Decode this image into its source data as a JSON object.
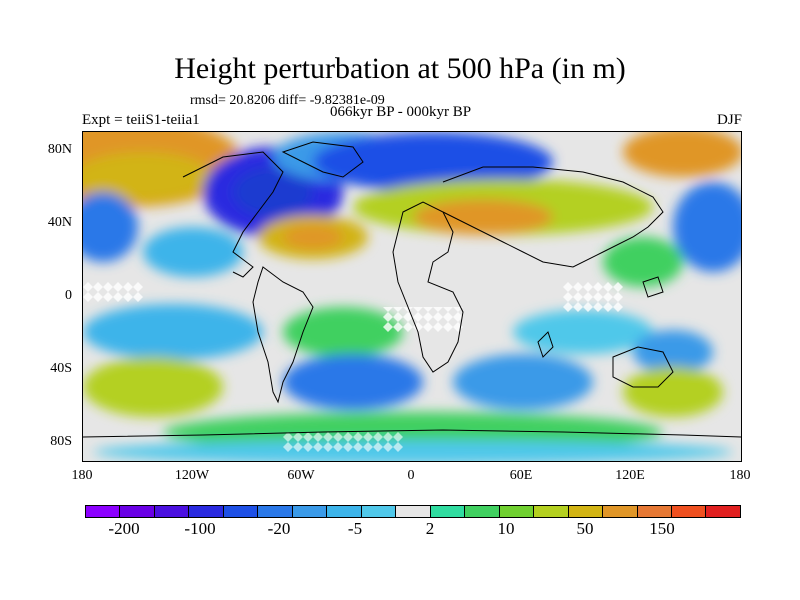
{
  "title": "Height perturbation at 500 hPa (in m)",
  "stats": "rmsd= 20.8206 diff= -9.82381e-09",
  "expt": "Expt = teiiS1-teiia1",
  "period": "066kyr BP - 000kyr BP",
  "season": "DJF",
  "lat_labels": [
    "80N",
    "40N",
    "0",
    "40S",
    "80S"
  ],
  "lon_labels": [
    "180",
    "120W",
    "60W",
    "0",
    "60E",
    "120E",
    "180"
  ],
  "colorbar": {
    "colors": [
      "#8c00ff",
      "#6a00e6",
      "#4b10e0",
      "#2a2ae0",
      "#1e50e6",
      "#2a78e8",
      "#3a9ae8",
      "#3cb4ea",
      "#50c8ea",
      "#e6e6e6",
      "#30dca0",
      "#40d060",
      "#70d030",
      "#b4d020",
      "#d2b414",
      "#e09628",
      "#e67834",
      "#ef5020",
      "#e12020"
    ],
    "labels": [
      "-200",
      "-100",
      "-20",
      "-5",
      "2",
      "10",
      "50",
      "150"
    ]
  }
}
